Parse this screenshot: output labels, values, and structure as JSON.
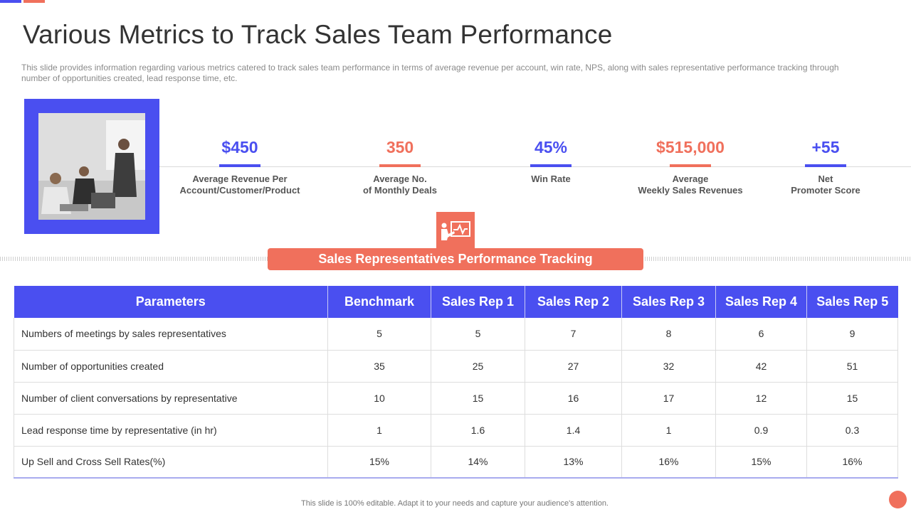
{
  "slide": {
    "title": "Various Metrics to Track Sales Team Performance",
    "subtitle": "This slide provides information regarding various metrics catered to track sales team performance in terms of average revenue per account, win rate, NPS, along with sales representative performance tracking through number of opportunities created, lead response time, etc."
  },
  "kpis": [
    {
      "value": "$450",
      "label": "Average Revenue Per\nAccount/Customer/Product",
      "color": "#4a4ff0"
    },
    {
      "value": "350",
      "label": "Average No.\nof Monthly Deals",
      "color": "#f0705c"
    },
    {
      "value": "45%",
      "label": "Win Rate",
      "color": "#4a4ff0"
    },
    {
      "value": "$515,000",
      "label": "Average\nWeekly Sales Revenues",
      "color": "#f0705c"
    },
    {
      "value": "+55",
      "label": "Net\nPromoter Score",
      "color": "#4a4ff0"
    }
  ],
  "section": {
    "banner": "Sales Representatives Performance Tracking",
    "icon": "presentation-chart-icon"
  },
  "table": {
    "headers": [
      "Parameters",
      "Benchmark",
      "Sales Rep 1",
      "Sales Rep 2",
      "Sales Rep 3",
      "Sales Rep 4",
      "Sales Rep 5"
    ],
    "rows": [
      [
        "Numbers of meetings by sales representatives",
        "5",
        "5",
        "7",
        "8",
        "6",
        "9"
      ],
      [
        "Number of opportunities created",
        "35",
        "25",
        "27",
        "32",
        "42",
        "51"
      ],
      [
        "Number of client conversations by representative",
        "10",
        "15",
        "16",
        "17",
        "12",
        "15"
      ],
      [
        "Lead response time by representative (in hr)",
        "1",
        "1.6",
        "1.4",
        "1",
        "0.9",
        "0.3"
      ],
      [
        "Up Sell and Cross Sell Rates(%)",
        "15%",
        "14%",
        "13%",
        "16%",
        "15%",
        "16%"
      ]
    ]
  },
  "footer": {
    "note": "This slide is 100% editable. Adapt it to your needs and capture your audience's attention."
  },
  "colors": {
    "accent_blue": "#4a4ff0",
    "accent_coral": "#f0705c"
  }
}
